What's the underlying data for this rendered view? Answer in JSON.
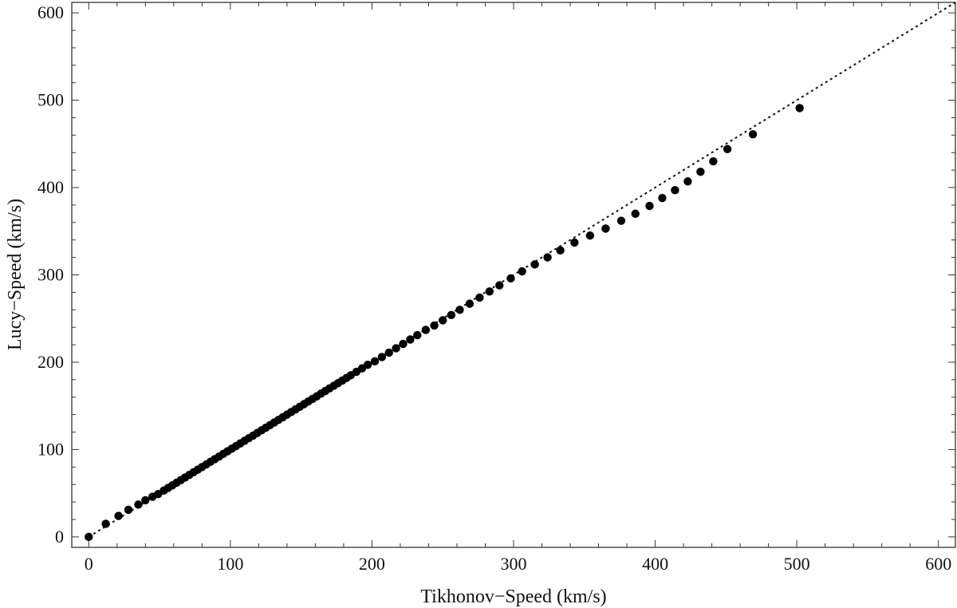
{
  "chart_data": {
    "type": "scatter",
    "xlabel": "Tikhonov−Speed (km/s)",
    "ylabel": "Lucy−Speed (km/s)",
    "xlim": [
      -12,
      612
    ],
    "ylim": [
      -12,
      612
    ],
    "xticks": [
      0,
      100,
      200,
      300,
      400,
      500,
      600
    ],
    "yticks": [
      0,
      100,
      200,
      300,
      400,
      500,
      600
    ],
    "grid": false,
    "reference_line": {
      "style": "dotted",
      "slope": 1,
      "intercept": 0
    },
    "series": [
      {
        "points": [
          [
            0,
            0
          ],
          [
            12,
            15
          ],
          [
            21,
            24
          ],
          [
            28,
            31
          ],
          [
            35,
            37
          ],
          [
            40,
            42
          ],
          [
            45,
            46
          ],
          [
            49,
            49
          ],
          [
            53,
            53
          ],
          [
            56,
            56
          ],
          [
            59,
            59
          ],
          [
            62,
            62
          ],
          [
            65,
            65
          ],
          [
            68,
            68
          ],
          [
            71,
            71
          ],
          [
            74,
            74
          ],
          [
            77,
            77
          ],
          [
            80,
            80
          ],
          [
            83,
            83
          ],
          [
            86,
            86
          ],
          [
            89,
            89
          ],
          [
            92,
            92
          ],
          [
            95,
            95
          ],
          [
            98,
            98
          ],
          [
            101,
            101
          ],
          [
            104,
            104
          ],
          [
            107,
            107
          ],
          [
            110,
            110
          ],
          [
            113,
            113
          ],
          [
            116,
            116
          ],
          [
            119,
            119
          ],
          [
            122,
            122
          ],
          [
            125,
            125
          ],
          [
            128,
            128
          ],
          [
            131,
            131
          ],
          [
            134,
            134
          ],
          [
            137,
            137
          ],
          [
            140,
            140
          ],
          [
            143,
            143
          ],
          [
            146,
            146
          ],
          [
            149,
            149
          ],
          [
            152,
            152
          ],
          [
            155,
            155
          ],
          [
            158,
            158
          ],
          [
            161,
            161
          ],
          [
            164,
            164
          ],
          [
            167,
            167
          ],
          [
            170,
            170
          ],
          [
            173,
            173
          ],
          [
            176,
            176
          ],
          [
            179,
            179
          ],
          [
            182,
            182
          ],
          [
            185,
            185
          ],
          [
            189,
            189
          ],
          [
            193,
            193
          ],
          [
            197,
            197
          ],
          [
            202,
            201
          ],
          [
            207,
            206
          ],
          [
            212,
            211
          ],
          [
            217,
            216
          ],
          [
            222,
            221
          ],
          [
            227,
            226
          ],
          [
            232,
            231
          ],
          [
            238,
            237
          ],
          [
            244,
            242
          ],
          [
            250,
            248
          ],
          [
            256,
            254
          ],
          [
            262,
            260
          ],
          [
            269,
            267
          ],
          [
            276,
            274
          ],
          [
            283,
            281
          ],
          [
            290,
            288
          ],
          [
            298,
            296
          ],
          [
            306,
            304
          ],
          [
            315,
            312
          ],
          [
            324,
            320
          ],
          [
            333,
            328
          ],
          [
            343,
            337
          ],
          [
            354,
            345
          ],
          [
            365,
            353
          ],
          [
            376,
            362
          ],
          [
            386,
            370
          ],
          [
            396,
            379
          ],
          [
            405,
            388
          ],
          [
            414,
            397
          ],
          [
            423,
            407
          ],
          [
            432,
            418
          ],
          [
            441,
            430
          ],
          [
            451,
            444
          ],
          [
            469,
            461
          ],
          [
            502,
            491
          ]
        ]
      }
    ]
  }
}
